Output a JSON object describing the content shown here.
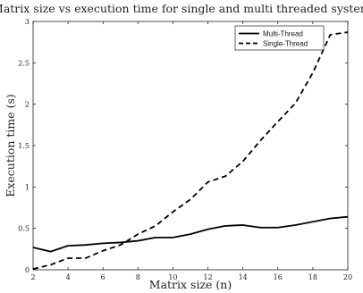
{
  "chart_data": {
    "type": "line",
    "title": "Matrix size vs execution time for single and multi threaded systems",
    "xlabel": "Matrix size (n)",
    "ylabel": "Execution time (s)",
    "xlim": [
      2,
      20
    ],
    "ylim": [
      0,
      3
    ],
    "x_ticks": [
      "2",
      "4",
      "6",
      "8",
      "10",
      "12",
      "14",
      "16",
      "18",
      "20"
    ],
    "y_ticks": [
      "0",
      "0.5",
      "1",
      "1.5",
      "2",
      "2.5",
      "3"
    ],
    "grid": false,
    "legend_position": "top-right",
    "x": [
      2,
      3,
      4,
      5,
      6,
      7,
      8,
      9,
      10,
      11,
      12,
      13,
      14,
      15,
      16,
      17,
      18,
      19,
      20
    ],
    "series": [
      {
        "name": "Multi-Thread",
        "line_style": "solid",
        "color": "#000000",
        "values": [
          0.27,
          0.22,
          0.29,
          0.3,
          0.32,
          0.33,
          0.35,
          0.39,
          0.39,
          0.43,
          0.49,
          0.53,
          0.54,
          0.51,
          0.51,
          0.54,
          0.58,
          0.62,
          0.64
        ]
      },
      {
        "name": "Single-Thread",
        "line_style": "dashed",
        "color": "#000000",
        "values": [
          0.01,
          0.06,
          0.14,
          0.14,
          0.23,
          0.3,
          0.43,
          0.53,
          0.7,
          0.85,
          1.06,
          1.13,
          1.31,
          1.56,
          1.79,
          2.01,
          2.38,
          2.84,
          2.87
        ]
      }
    ]
  }
}
